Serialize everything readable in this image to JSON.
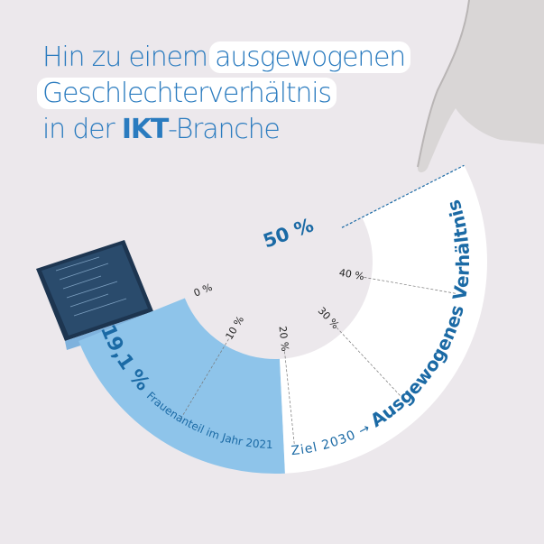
{
  "title": {
    "line1_plain": "Hin zu einem ",
    "line1_highlight": "ausgewogenen",
    "line2_highlight": "Geschlechterverhältnis",
    "line3_pre": "in der ",
    "line3_bold": "IKT",
    "line3_post": "-Branche"
  },
  "chart_data": {
    "type": "gauge",
    "range": [
      0,
      50
    ],
    "ticks": [
      "0 %",
      "10 %",
      "20 %",
      "30 %",
      "40 %"
    ],
    "tick_values": [
      0,
      10,
      20,
      30,
      40
    ],
    "max_label": "50 %",
    "current": {
      "value": 19.1,
      "value_label": "19,1 %",
      "label": "Frauenanteil im Jahr 2021"
    },
    "target": {
      "value": 50,
      "year_label": "Ziel 2030 →",
      "label": "Ausgewogenes Verhältnis"
    }
  },
  "colors": {
    "accent": "#1b6aa5",
    "fill": "#8ec4ea",
    "title": "#2a7bbf",
    "background": "#ece8ec"
  }
}
